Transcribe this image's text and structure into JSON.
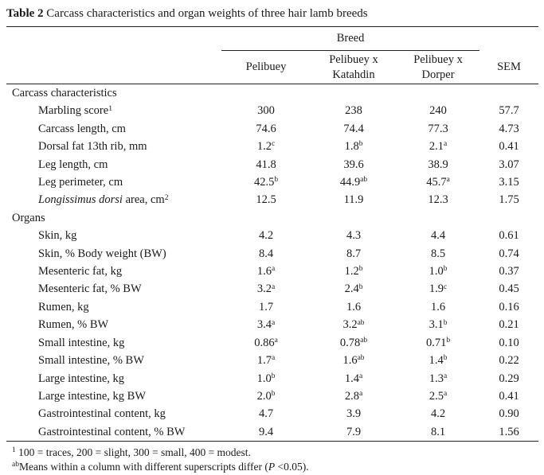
{
  "title": {
    "label_bold": "Table 2",
    "label_rest": " Carcass characteristics and organ weights of three hair lamb breeds"
  },
  "table": {
    "group_header": "Breed",
    "columns": [
      "Pelibuey",
      "Pelibuey x Katahdin",
      "Pelibuey x Dorper"
    ],
    "sem_header": "SEM",
    "rows": [
      {
        "type": "section",
        "label": "Carcass characteristics"
      },
      {
        "type": "data",
        "label": "Marbling score",
        "label_sup": "1",
        "values": [
          {
            "v": "300"
          },
          {
            "v": "238"
          },
          {
            "v": "240"
          }
        ],
        "sem": "57.7"
      },
      {
        "type": "data",
        "label": "Carcass length, cm",
        "values": [
          {
            "v": "74.6"
          },
          {
            "v": "74.4"
          },
          {
            "v": "77.3"
          }
        ],
        "sem": "4.73"
      },
      {
        "type": "data",
        "label": "Dorsal fat 13th rib, mm",
        "values": [
          {
            "v": "1.2",
            "s": "c"
          },
          {
            "v": "1.8",
            "s": "b"
          },
          {
            "v": "2.1",
            "s": "a"
          }
        ],
        "sem": "0.41"
      },
      {
        "type": "data",
        "label": "Leg length, cm",
        "values": [
          {
            "v": "41.8"
          },
          {
            "v": "39.6"
          },
          {
            "v": "38.9"
          }
        ],
        "sem": "3.07"
      },
      {
        "type": "data",
        "label": "Leg perimeter, cm",
        "values": [
          {
            "v": "42.5",
            "s": "b"
          },
          {
            "v": "44.9",
            "s": "ab"
          },
          {
            "v": "45.7",
            "s": "a"
          }
        ],
        "sem": "3.15"
      },
      {
        "type": "data",
        "label_italic": "Longissimus dorsi",
        "label": " area, cm",
        "label_sup": "2",
        "values": [
          {
            "v": "12.5"
          },
          {
            "v": "11.9"
          },
          {
            "v": "12.3"
          }
        ],
        "sem": "1.75"
      },
      {
        "type": "section",
        "label": "Organs"
      },
      {
        "type": "data",
        "label": "Skin, kg",
        "values": [
          {
            "v": "4.2"
          },
          {
            "v": "4.3"
          },
          {
            "v": "4.4"
          }
        ],
        "sem": "0.61"
      },
      {
        "type": "data",
        "label": "Skin, % Body weight (BW)",
        "values": [
          {
            "v": "8.4"
          },
          {
            "v": "8.7"
          },
          {
            "v": "8.5"
          }
        ],
        "sem": "0.74"
      },
      {
        "type": "data",
        "label": "Mesenteric fat, kg",
        "values": [
          {
            "v": "1.6",
            "s": "a"
          },
          {
            "v": "1.2",
            "s": "b"
          },
          {
            "v": "1.0",
            "s": "b"
          }
        ],
        "sem": "0.37"
      },
      {
        "type": "data",
        "label": "Mesenteric fat, % BW",
        "values": [
          {
            "v": "3.2",
            "s": "a"
          },
          {
            "v": "2.4",
            "s": "b"
          },
          {
            "v": "1.9",
            "s": "c"
          }
        ],
        "sem": "0.45"
      },
      {
        "type": "data",
        "label": "Rumen, kg",
        "values": [
          {
            "v": "1.7"
          },
          {
            "v": "1.6"
          },
          {
            "v": "1.6"
          }
        ],
        "sem": "0.16"
      },
      {
        "type": "data",
        "label": "Rumen, % BW",
        "values": [
          {
            "v": "3.4",
            "s": "a"
          },
          {
            "v": "3.2",
            "s": "ab"
          },
          {
            "v": "3.1",
            "s": "b"
          }
        ],
        "sem": "0.21"
      },
      {
        "type": "data",
        "label": "Small intestine, kg",
        "values": [
          {
            "v": "0.86",
            "s": "a"
          },
          {
            "v": "0.78",
            "s": "ab"
          },
          {
            "v": "0.71",
            "s": "b"
          }
        ],
        "sem": "0.10"
      },
      {
        "type": "data",
        "label": "Small intestine, % BW",
        "values": [
          {
            "v": "1.7",
            "s": "a"
          },
          {
            "v": "1.6",
            "s": "ab"
          },
          {
            "v": "1.4",
            "s": "b"
          }
        ],
        "sem": "0.22"
      },
      {
        "type": "data",
        "label": "Large intestine, kg",
        "values": [
          {
            "v": "1.0",
            "s": "b"
          },
          {
            "v": "1.4",
            "s": "a"
          },
          {
            "v": "1.3",
            "s": "a"
          }
        ],
        "sem": "0.29"
      },
      {
        "type": "data",
        "label": "Large intestine, kg BW",
        "values": [
          {
            "v": "2.0",
            "s": "b"
          },
          {
            "v": "2.8",
            "s": "a"
          },
          {
            "v": "2.5",
            "s": "a"
          }
        ],
        "sem": "0.41"
      },
      {
        "type": "data",
        "label": "Gastrointestinal content, kg",
        "values": [
          {
            "v": "4.7"
          },
          {
            "v": "3.9"
          },
          {
            "v": "4.2"
          }
        ],
        "sem": "0.90"
      },
      {
        "type": "data",
        "label": "Gastrointestinal content, % BW",
        "values": [
          {
            "v": "9.4"
          },
          {
            "v": "7.9"
          },
          {
            "v": "8.1"
          }
        ],
        "sem": "1.56"
      }
    ]
  },
  "footnotes": [
    {
      "parts": [
        {
          "t": "1",
          "sup": true
        },
        {
          "t": " 100 = traces, 200 = slight, 300 = small, 400 = modest."
        }
      ]
    },
    {
      "parts": [
        {
          "t": "ab",
          "sup": true
        },
        {
          "t": "Means within a column with different superscripts differ ("
        },
        {
          "t": "P",
          "italic": true
        },
        {
          "t": " <0.05)."
        }
      ]
    }
  ],
  "colors": {
    "text": "#1a1a1a",
    "rule": "#222222",
    "background": "#ffffff"
  }
}
